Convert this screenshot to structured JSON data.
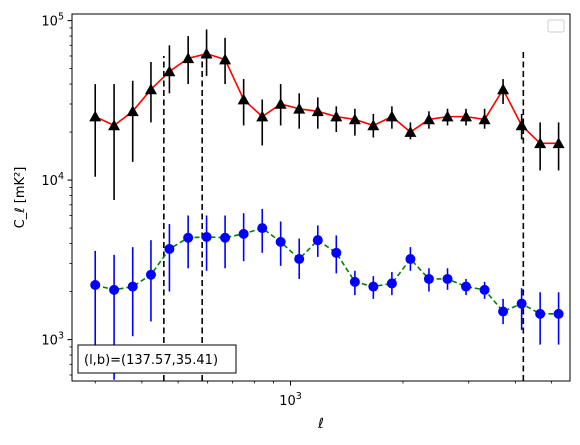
{
  "chart_data": {
    "type": "scatter",
    "title": "",
    "xlabel": "ℓ",
    "ylabel": "C_ℓ  [mK²]",
    "xscale": "log",
    "yscale": "log",
    "xlim": [
      260,
      5600
    ],
    "ylim": [
      550,
      110000
    ],
    "x_ticks": [
      {
        "value": 1000,
        "base": "10",
        "exp": "3"
      }
    ],
    "y_ticks": [
      {
        "value": 1000,
        "base": "10",
        "exp": "3"
      },
      {
        "value": 10000,
        "base": "10",
        "exp": "4"
      },
      {
        "value": 100000,
        "base": "10",
        "exp": "5"
      }
    ],
    "grid": false,
    "legend": {
      "placement": "top-right",
      "entries": []
    },
    "annotation": {
      "text": "(l,b)=(137.57,35.41)",
      "placement": "bottom-left"
    },
    "vlines": [
      {
        "x": 458,
        "y_range": [
          550,
          60000
        ],
        "style": "dashed",
        "color": "#000000"
      },
      {
        "x": 580,
        "y_range": [
          550,
          60000
        ],
        "style": "dashed",
        "color": "#000000"
      },
      {
        "x": 4200,
        "y_range": [
          550,
          65000
        ],
        "style": "dashed",
        "color": "#000000"
      }
    ],
    "series": [
      {
        "line_color": "#ff0000",
        "marker_color": "#000000",
        "error_color": "#000000",
        "marker": "triangle",
        "line_style": "solid",
        "x": [
          300,
          337,
          378,
          423,
          474,
          532,
          596,
          668,
          749,
          840,
          941,
          1055,
          1183,
          1326,
          1487,
          1666,
          1868,
          2094,
          2347,
          2632,
          2950,
          3308,
          3707,
          4156,
          4659,
          5220
        ],
        "y": [
          25000,
          22000,
          27000,
          37000,
          48000,
          58000,
          62000,
          57000,
          32000,
          25000,
          30000,
          28000,
          27000,
          25000,
          24000,
          22000,
          25000,
          20000,
          24000,
          25000,
          25000,
          24000,
          37000,
          22000,
          17000,
          17000
        ],
        "yerr_low": [
          10500,
          7500,
          13000,
          23000,
          35000,
          40000,
          45000,
          40000,
          22000,
          16500,
          22000,
          21000,
          21000,
          20000,
          19000,
          18500,
          21000,
          18000,
          21000,
          22000,
          22000,
          21000,
          30000,
          18000,
          11500,
          11500
        ],
        "yerr_high": [
          40000,
          40000,
          42000,
          55000,
          70000,
          80000,
          88000,
          78000,
          43000,
          32000,
          40000,
          35000,
          33000,
          29000,
          28000,
          26000,
          29000,
          23000,
          27000,
          28000,
          28000,
          28000,
          43000,
          26000,
          23000,
          23000
        ]
      },
      {
        "line_color": "#008000",
        "marker_color": "#0000ff",
        "error_color": "#0000ff",
        "marker": "circle",
        "line_style": "dashed",
        "x": [
          300,
          337,
          378,
          423,
          474,
          532,
          596,
          668,
          749,
          840,
          941,
          1055,
          1183,
          1326,
          1487,
          1666,
          1868,
          2094,
          2347,
          2632,
          2950,
          3308,
          3707,
          4156,
          4659,
          5220
        ],
        "y": [
          2200,
          2050,
          2150,
          2550,
          3700,
          4350,
          4400,
          4350,
          4600,
          5000,
          4100,
          3200,
          4200,
          3500,
          2300,
          2150,
          2250,
          3200,
          2400,
          2400,
          2150,
          2050,
          1500,
          1680,
          1450,
          1450
        ],
        "yerr_low": [
          620,
          560,
          1050,
          1300,
          2000,
          2800,
          2700,
          2800,
          3100,
          3500,
          2900,
          2400,
          3300,
          2600,
          1900,
          1800,
          1900,
          2700,
          2000,
          2050,
          1900,
          1800,
          1250,
          1150,
          930,
          930
        ],
        "yerr_high": [
          3600,
          3400,
          3800,
          4200,
          5300,
          6000,
          6000,
          6000,
          6200,
          6600,
          5500,
          4300,
          5200,
          4500,
          2700,
          2500,
          2650,
          3800,
          2800,
          2800,
          2400,
          2300,
          1800,
          2100,
          1980,
          1980
        ]
      }
    ]
  }
}
